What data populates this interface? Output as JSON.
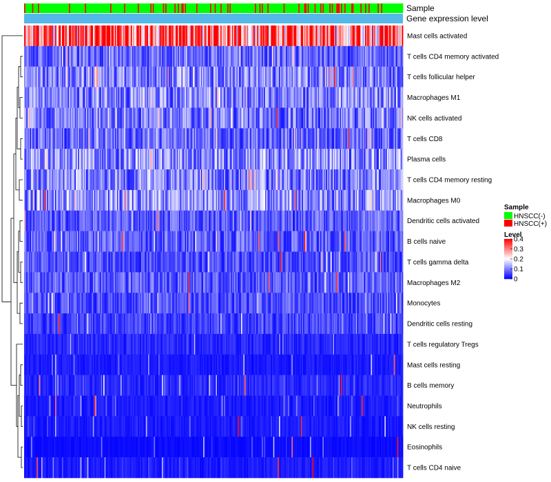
{
  "chart_data": {
    "type": "heatmap",
    "annotation_tracks": [
      {
        "name": "Sample",
        "kind": "categorical"
      },
      {
        "name": "Gene expression level",
        "kind": "constant",
        "color": "#55b8e8"
      }
    ],
    "rows": [
      "Mast cells activated",
      "T cells CD4 memory activated",
      "T cells follicular helper",
      "Macrophages M1",
      "NK cells activated",
      "T cells CD8",
      "Plasma cells",
      "T cells CD4 memory resting",
      "Macrophages M0",
      "Dendritic cells activated",
      "B cells naive",
      "T cells gamma delta",
      "Macrophages M2",
      "Monocytes",
      "Dendritic cells resting",
      "T cells regulatory  Tregs",
      "Mast cells resting",
      "B cells memory",
      "Neutrophils",
      "NK cells resting",
      "Eosinophils",
      "T cells CD4 naive"
    ],
    "row_means": [
      0.3,
      0.08,
      0.1,
      0.1,
      0.09,
      0.08,
      0.11,
      0.1,
      0.11,
      0.07,
      0.07,
      0.06,
      0.07,
      0.06,
      0.05,
      0.03,
      0.02,
      0.03,
      0.02,
      0.02,
      0.01,
      0.02
    ],
    "n_samples": 330,
    "sample_groups": {
      "hnscc_positive_fraction": 0.13
    },
    "color_scale": {
      "min": 0,
      "max": 0.4,
      "colors": [
        "#0000ff",
        "#ffffff",
        "#ff0000"
      ]
    },
    "legend": {
      "sample": {
        "title": "Sample",
        "entries": [
          {
            "label": "HNSCC(-)",
            "color": "#00ff00"
          },
          {
            "label": "HNSCC(+)",
            "color": "#ff0000"
          }
        ]
      },
      "level": {
        "title": "Level",
        "ticks": [
          "0.4",
          "0.3",
          "0.2",
          "0.1",
          "0"
        ],
        "tick_values": [
          0.4,
          0.3,
          0.2,
          0.1,
          0
        ]
      }
    }
  }
}
